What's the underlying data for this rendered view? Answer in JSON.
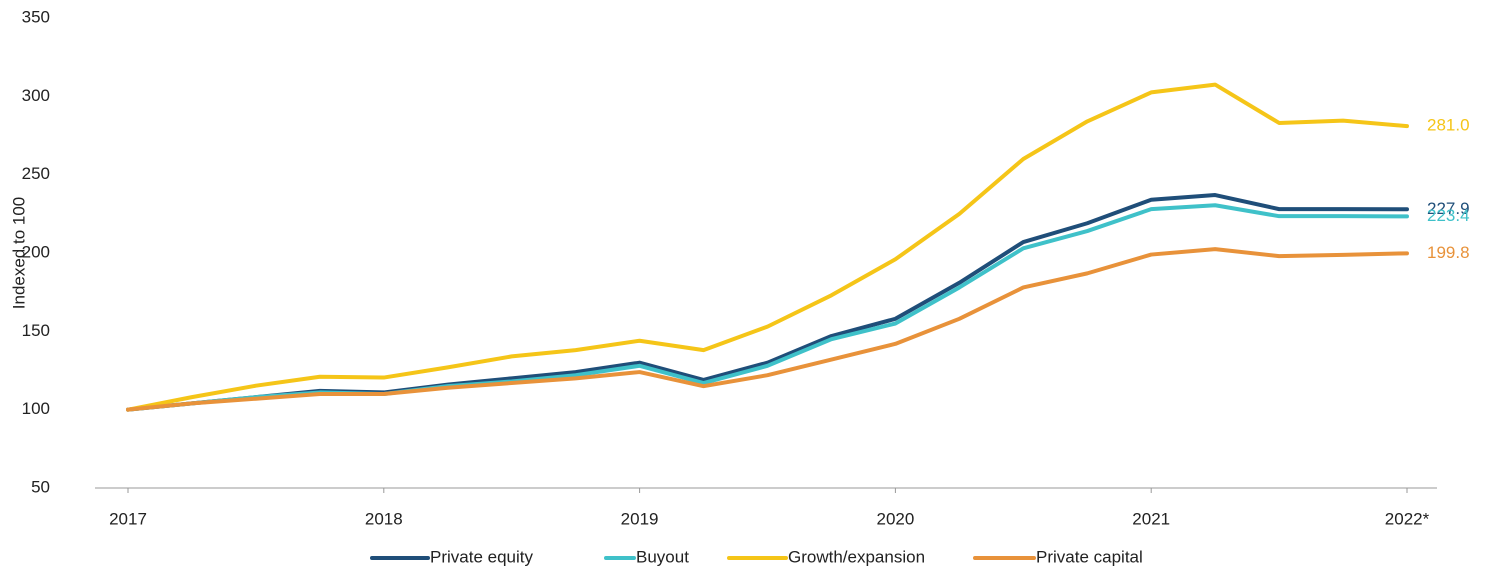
{
  "chart_data": {
    "type": "line",
    "y_label": "Indexed to 100",
    "categories": [
      "2017",
      null,
      null,
      null,
      "2018",
      null,
      null,
      null,
      "2019",
      null,
      null,
      null,
      "2020",
      null,
      null,
      null,
      "2021",
      null,
      null,
      null,
      "2022*"
    ],
    "ylim": [
      50,
      350
    ],
    "yticks": [
      50,
      100,
      150,
      200,
      250,
      300,
      350
    ],
    "grid": false,
    "legend": "bottom",
    "series": [
      {
        "name": "Private equity",
        "color": "#1f4e79",
        "values": [
          100,
          104,
          108,
          112,
          111,
          116,
          120,
          124,
          130,
          119,
          130,
          147,
          158,
          181,
          207,
          219,
          234,
          237,
          228,
          228,
          227.9
        ],
        "value_labels": [
          null,
          null,
          null,
          null,
          null,
          null,
          null,
          null,
          null,
          null,
          null,
          null,
          null,
          null,
          null,
          null,
          null,
          null,
          null,
          null,
          "227.9"
        ]
      },
      {
        "name": "Buyout",
        "color": "#3fc1c9",
        "values": [
          100,
          104,
          108,
          111,
          110,
          115,
          118,
          122,
          128,
          117,
          128,
          145,
          155,
          178,
          203,
          214,
          228,
          230.5,
          223.5,
          223.5,
          223.4
        ],
        "value_labels": [
          null,
          null,
          null,
          null,
          null,
          null,
          null,
          null,
          null,
          null,
          null,
          null,
          null,
          null,
          null,
          null,
          null,
          null,
          null,
          null,
          "223.4"
        ]
      },
      {
        "name": "Growth/expansion",
        "color": "#f5c518",
        "values": [
          100,
          108,
          115.3,
          121,
          120.5,
          127,
          134,
          138,
          144,
          138,
          153,
          173,
          196,
          225,
          260,
          284,
          302.5,
          307.5,
          283,
          284.5,
          281.0
        ],
        "value_labels": [
          null,
          null,
          null,
          null,
          null,
          null,
          null,
          null,
          null,
          null,
          null,
          null,
          null,
          null,
          null,
          null,
          null,
          null,
          null,
          null,
          "281.0"
        ]
      },
      {
        "name": "Private capital",
        "color": "#e8923a",
        "values": [
          100,
          104,
          107,
          110,
          110,
          114,
          117,
          120,
          124,
          115,
          122,
          132,
          142,
          158,
          178,
          187,
          199,
          202.5,
          198,
          198.8,
          199.8
        ],
        "value_labels": [
          null,
          null,
          null,
          null,
          null,
          null,
          null,
          null,
          null,
          null,
          null,
          null,
          null,
          null,
          null,
          null,
          null,
          null,
          null,
          null,
          "199.8"
        ]
      }
    ]
  }
}
